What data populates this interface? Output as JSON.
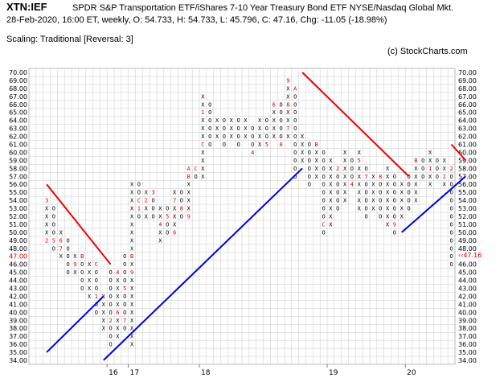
{
  "header": {
    "symbol": "XTN:IEF",
    "description": "SPDR S&P Transportation ETF/iShares 7-10 Year Treasury Bond ETF  NYSE/Nasdaq Global Mkt.",
    "quote_line": "28-Feb-2020, 16:00 ET, weekly, O: 54.733, H: 54.733, L: 45.796, C: 47.16, Chg: -11.05 (-18.98%)",
    "scaling": "Scaling: Traditional [Reversal: 3]",
    "copyright": "(c) StockCharts.com"
  },
  "colors": {
    "grid": "#c8c8c8",
    "box_x": "#000000",
    "box_o": "#000000",
    "month_marker": "#cc0000",
    "resistance_line": "#ee0000",
    "support_line": "#0000dd",
    "last_price": "#cc0000"
  },
  "chart_data": {
    "type": "point-and-figure",
    "box_size": 1,
    "reversal": 3,
    "ylim": [
      34,
      70
    ],
    "y_ticks": [
      "34.00",
      "35.00",
      "36.00",
      "37.00",
      "38.00",
      "39.00",
      "40.00",
      "41.00",
      "42.00",
      "43.00",
      "44.00",
      "45.00",
      "46.00",
      "47.00",
      "48.00",
      "49.00",
      "50.00",
      "51.00",
      "52.00",
      "53.00",
      "54.00",
      "55.00",
      "56.00",
      "57.00",
      "58.00",
      "59.00",
      "60.00",
      "61.00",
      "62.00",
      "63.00",
      "64.00",
      "65.00",
      "66.00",
      "67.00",
      "68.00",
      "69.00",
      "70.00"
    ],
    "last_price_label": "47.00",
    "last_price_marker": "47.16",
    "year_labels": [
      {
        "text": "16",
        "column": 9
      },
      {
        "text": "17",
        "column": 12
      },
      {
        "text": "18",
        "column": 22
      },
      {
        "text": "19",
        "column": 40
      },
      {
        "text": "20",
        "column": 51
      }
    ],
    "columns": [
      {
        "type": "X",
        "low": 49,
        "high": 54,
        "marks": {
          "54": "3",
          "49": "2"
        }
      },
      {
        "type": "O",
        "low": 48,
        "high": 53,
        "marks": {
          "49": "5"
        }
      },
      {
        "type": "X",
        "low": 47,
        "high": 50,
        "marks": {
          "49": "6",
          "48": "7"
        }
      },
      {
        "type": "O",
        "low": 45,
        "high": 49
      },
      {
        "type": "X",
        "low": 45,
        "high": 47,
        "marks": {
          "46": "9"
        }
      },
      {
        "type": "O",
        "low": 43,
        "high": 47,
        "marks": {
          "47": "B"
        }
      },
      {
        "type": "X",
        "low": 42,
        "high": 46
      },
      {
        "type": "O",
        "low": 40,
        "high": 46,
        "marks": {
          "46": "C",
          "42": "1"
        }
      },
      {
        "type": "X",
        "low": 38,
        "high": 42,
        "marks": {
          "43": "A"
        }
      },
      {
        "type": "O",
        "low": 36,
        "high": 45,
        "marks": {
          "39": "2"
        }
      },
      {
        "type": "X",
        "low": 37,
        "high": 45,
        "marks": {
          "45": "4",
          "40": "6"
        }
      },
      {
        "type": "O",
        "low": 38,
        "high": 47,
        "marks": {
          "43": "5",
          "39": "7"
        }
      },
      {
        "type": "X",
        "low": 36,
        "high": 56,
        "marks": {
          "47": "B",
          "45": "9"
        }
      },
      {
        "type": "O",
        "low": 52,
        "high": 56,
        "marks": {
          "54": "C",
          "53": "1"
        }
      },
      {
        "type": "X",
        "low": 52,
        "high": 55,
        "marks": {
          "54": "2"
        }
      },
      {
        "type": "O",
        "low": 52,
        "high": 55,
        "marks": {
          "55": "3"
        }
      },
      {
        "type": "X",
        "low": 49,
        "high": 53,
        "marks": {
          "51": "4"
        }
      },
      {
        "type": "O",
        "low": 50,
        "high": 53,
        "marks": {
          "52": "5"
        }
      },
      {
        "type": "X",
        "low": 50,
        "high": 55,
        "marks": {
          "54": "7",
          "50": "6"
        }
      },
      {
        "type": "O",
        "low": 52,
        "high": 55,
        "marks": {
          "53": "8"
        }
      },
      {
        "type": "X",
        "low": 52,
        "high": 58,
        "marks": {
          "58": "A",
          "57": "B",
          "52": "9"
        }
      },
      {
        "type": "O",
        "low": 57,
        "high": 58,
        "marks": {
          "58": "C"
        }
      },
      {
        "type": "X",
        "low": 57,
        "high": 67,
        "marks": {
          "65": "1",
          "61": "C"
        }
      },
      {
        "type": "O",
        "low": 61,
        "high": 66,
        "marks": {
          "67": "2"
        }
      },
      {
        "type": "X",
        "low": 62,
        "high": 64,
        "marks": {}
      },
      {
        "type": "O",
        "low": 61,
        "high": 64,
        "marks": {}
      },
      {
        "type": "X",
        "low": 62,
        "high": 64,
        "marks": {}
      },
      {
        "type": "O",
        "low": 61,
        "high": 64,
        "marks": {}
      },
      {
        "type": "X",
        "low": 62,
        "high": 64,
        "marks": {}
      },
      {
        "type": "O",
        "low": 60,
        "high": 63,
        "marks": {
          "60": "4"
        }
      },
      {
        "type": "X",
        "low": 61,
        "high": 64,
        "marks": {}
      },
      {
        "type": "O",
        "low": 61,
        "high": 64,
        "marks": {
          "61": "5"
        }
      },
      {
        "type": "X",
        "low": 62,
        "high": 66,
        "marks": {
          "66": "6"
        }
      },
      {
        "type": "O",
        "low": 61,
        "high": 66,
        "marks": {
          "61": "0"
        }
      },
      {
        "type": "X",
        "low": 62,
        "high": 69,
        "marks": {
          "69": "9",
          "66": "8",
          "63": "7"
        }
      },
      {
        "type": "O",
        "low": 57,
        "high": 68,
        "marks": {
          "68": "A"
        }
      },
      {
        "type": "X",
        "low": 59,
        "high": 62,
        "marks": {}
      },
      {
        "type": "O",
        "low": 56,
        "high": 61,
        "marks": {}
      },
      {
        "type": "X",
        "low": 57,
        "high": 61,
        "marks": {
          "61": "B"
        }
      },
      {
        "type": "O",
        "low": 50,
        "high": 60,
        "marks": {
          "51": "C"
        }
      },
      {
        "type": "X",
        "low": 51,
        "high": 59,
        "marks": {
          "60": "1"
        }
      },
      {
        "type": "O",
        "low": 53,
        "high": 58,
        "marks": {
          "58": "2"
        }
      },
      {
        "type": "X",
        "low": 54,
        "high": 60,
        "marks": {}
      },
      {
        "type": "O",
        "low": 56,
        "high": 59,
        "marks": {
          "56": "4"
        }
      },
      {
        "type": "X",
        "low": 53,
        "high": 60,
        "marks": {
          "59": "5"
        }
      },
      {
        "type": "O",
        "low": 52,
        "high": 58,
        "marks": {
          "57": "7"
        }
      },
      {
        "type": "X",
        "low": 53,
        "high": 57,
        "marks": {}
      },
      {
        "type": "O",
        "low": 52,
        "high": 57,
        "marks": {
          "57": "8"
        }
      },
      {
        "type": "X",
        "low": 51,
        "high": 58,
        "marks": {}
      },
      {
        "type": "O",
        "low": 50,
        "high": 57,
        "marks": {
          "51": "9"
        }
      },
      {
        "type": "X",
        "low": 52,
        "high": 56,
        "marks": {}
      },
      {
        "type": "O",
        "low": 53,
        "high": 57,
        "marks": {}
      },
      {
        "type": "X",
        "low": 54,
        "high": 59,
        "marks": {
          "59": "B"
        }
      },
      {
        "type": "O",
        "low": 57,
        "high": 59,
        "marks": {}
      },
      {
        "type": "X",
        "low": 56,
        "high": 60,
        "marks": {
          "58": "1"
        }
      },
      {
        "type": "O",
        "low": 57,
        "high": 59,
        "marks": {}
      },
      {
        "type": "X",
        "low": 56,
        "high": 59,
        "marks": {
          "57": "2"
        }
      },
      {
        "type": "O",
        "low": 46,
        "high": 58,
        "marks": {
          "58": "2"
        }
      }
    ],
    "trendlines": [
      {
        "kind": "resistance",
        "from": [
          0,
          56
        ],
        "to": [
          9,
          46
        ]
      },
      {
        "kind": "support",
        "from": [
          0,
          35
        ],
        "to": [
          8,
          42
        ]
      },
      {
        "kind": "support",
        "from": [
          8,
          34
        ],
        "to": [
          36,
          58
        ]
      },
      {
        "kind": "resistance",
        "from": [
          36,
          70
        ],
        "to": [
          51,
          57
        ]
      },
      {
        "kind": "support",
        "from": [
          50,
          50
        ],
        "to": [
          59,
          57
        ]
      },
      {
        "kind": "resistance",
        "from": [
          57,
          61
        ],
        "to": [
          59,
          59
        ]
      }
    ]
  }
}
